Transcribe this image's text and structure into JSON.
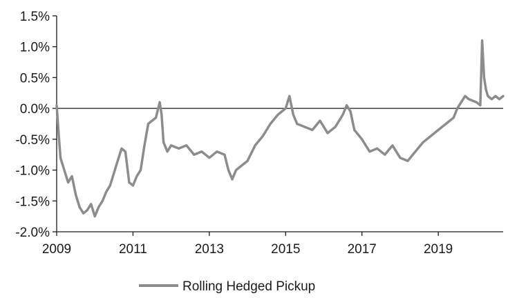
{
  "chart_data": {
    "type": "line",
    "title": "",
    "xlabel": "",
    "ylabel": "",
    "ylim": [
      -2.0,
      1.5
    ],
    "xlim": [
      2009.0,
      2020.7
    ],
    "y_ticks": [
      {
        "value": 1.5,
        "label": "1.5%"
      },
      {
        "value": 1.0,
        "label": "1.0%"
      },
      {
        "value": 0.5,
        "label": "0.5%"
      },
      {
        "value": 0.0,
        "label": "0.0%"
      },
      {
        "value": -0.5,
        "label": "-0.5%"
      },
      {
        "value": -1.0,
        "label": "-1.0%"
      },
      {
        "value": -1.5,
        "label": "-1.5%"
      },
      {
        "value": -2.0,
        "label": "-2.0%"
      }
    ],
    "x_ticks": [
      {
        "value": 2009,
        "label": "2009"
      },
      {
        "value": 2011,
        "label": "2011"
      },
      {
        "value": 2013,
        "label": "2013"
      },
      {
        "value": 2015,
        "label": "2015"
      },
      {
        "value": 2017,
        "label": "2017"
      },
      {
        "value": 2019,
        "label": "2019"
      }
    ],
    "grid": false,
    "zero_line": true,
    "legend_position": "bottom-center",
    "series": [
      {
        "name": "Rolling Hedged Pickup",
        "color": "#8c8c8c",
        "x": [
          2009.0,
          2009.05,
          2009.1,
          2009.2,
          2009.3,
          2009.4,
          2009.5,
          2009.6,
          2009.7,
          2009.8,
          2009.9,
          2010.0,
          2010.1,
          2010.2,
          2010.3,
          2010.4,
          2010.5,
          2010.6,
          2010.7,
          2010.8,
          2010.9,
          2011.0,
          2011.1,
          2011.2,
          2011.3,
          2011.4,
          2011.5,
          2011.6,
          2011.7,
          2011.75,
          2011.8,
          2011.9,
          2012.0,
          2012.2,
          2012.4,
          2012.6,
          2012.8,
          2013.0,
          2013.2,
          2013.4,
          2013.5,
          2013.6,
          2013.7,
          2013.8,
          2014.0,
          2014.2,
          2014.4,
          2014.6,
          2014.8,
          2015.0,
          2015.1,
          2015.2,
          2015.3,
          2015.5,
          2015.7,
          2015.9,
          2016.1,
          2016.3,
          2016.5,
          2016.6,
          2016.7,
          2016.8,
          2017.0,
          2017.2,
          2017.4,
          2017.6,
          2017.8,
          2018.0,
          2018.2,
          2018.4,
          2018.6,
          2018.8,
          2019.0,
          2019.2,
          2019.4,
          2019.5,
          2019.6,
          2019.7,
          2019.8,
          2020.0,
          2020.1,
          2020.15,
          2020.2,
          2020.25,
          2020.3,
          2020.4,
          2020.5,
          2020.6,
          2020.7
        ],
        "values": [
          0.05,
          -0.4,
          -0.8,
          -1.0,
          -1.2,
          -1.1,
          -1.4,
          -1.6,
          -1.7,
          -1.65,
          -1.55,
          -1.75,
          -1.6,
          -1.5,
          -1.35,
          -1.25,
          -1.05,
          -0.85,
          -0.65,
          -0.7,
          -1.2,
          -1.25,
          -1.1,
          -1.0,
          -0.6,
          -0.25,
          -0.2,
          -0.15,
          0.1,
          -0.1,
          -0.55,
          -0.7,
          -0.6,
          -0.65,
          -0.6,
          -0.75,
          -0.7,
          -0.8,
          -0.7,
          -0.75,
          -1.0,
          -1.15,
          -1.0,
          -0.95,
          -0.85,
          -0.6,
          -0.45,
          -0.25,
          -0.1,
          0.0,
          0.2,
          -0.1,
          -0.25,
          -0.3,
          -0.35,
          -0.2,
          -0.4,
          -0.3,
          -0.1,
          0.05,
          -0.05,
          -0.35,
          -0.5,
          -0.7,
          -0.65,
          -0.75,
          -0.6,
          -0.8,
          -0.85,
          -0.7,
          -0.55,
          -0.45,
          -0.35,
          -0.25,
          -0.15,
          0.0,
          0.1,
          0.2,
          0.15,
          0.1,
          0.05,
          1.1,
          0.5,
          0.3,
          0.2,
          0.15,
          0.2,
          0.15,
          0.2
        ]
      }
    ]
  }
}
